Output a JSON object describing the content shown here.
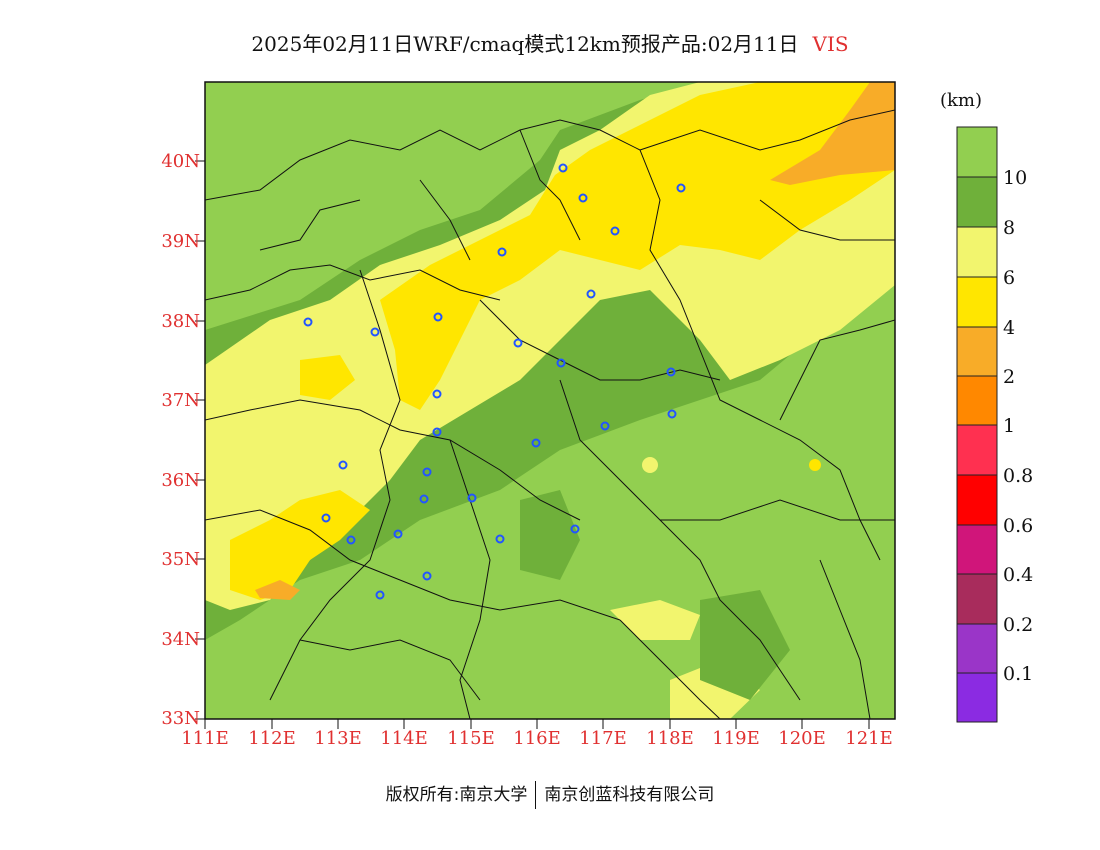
{
  "title": {
    "text": "2025年02月11日WRF/cmaq模式12km预报产品:02月11日",
    "variable": "VIS"
  },
  "axes": {
    "lat_ticks": [
      "33N",
      "34N",
      "35N",
      "36N",
      "37N",
      "38N",
      "39N",
      "40N"
    ],
    "lon_ticks": [
      "111E",
      "112E",
      "113E",
      "114E",
      "115E",
      "116E",
      "117E",
      "118E",
      "119E",
      "120E",
      "121E"
    ]
  },
  "legend": {
    "unit": "(km)",
    "labels": [
      "10",
      "8",
      "6",
      "4",
      "2",
      "1",
      "0.8",
      "0.6",
      "0.4",
      "0.2",
      "0.1"
    ],
    "colors": [
      "#92cf50",
      "#6fb03a",
      "#f2f56e",
      "#ffe600",
      "#f8ac28",
      "#ff8800",
      "#ff3050",
      "#ff0000",
      "#d0157a",
      "#a82c5c",
      "#9a35c8",
      "#8b2be2"
    ]
  },
  "map": {
    "lat_range": [
      33,
      41
    ],
    "lon_range": [
      111,
      121.4
    ],
    "city_marker_color": "#2255ff"
  },
  "footer": {
    "left": "版权所有:南京大学",
    "right": "南京创蓝科技有限公司"
  }
}
